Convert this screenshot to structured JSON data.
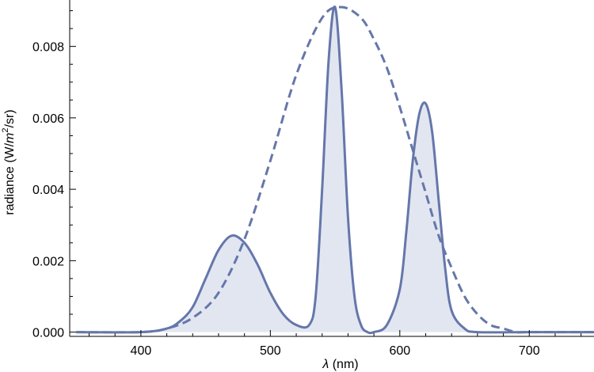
{
  "chart_data": {
    "type": "area",
    "title": "",
    "xlabel": {
      "symbol": "λ",
      "unit": " (nm)"
    },
    "ylabel": {
      "prefix": "radiance (W/",
      "m": "m",
      "exp": "2",
      "suffix": "/sr)"
    },
    "xlim": [
      345,
      750
    ],
    "ylim": [
      -0.00012,
      0.0093
    ],
    "x_ticks_major": [
      400,
      500,
      600,
      700
    ],
    "x_tick_labels": [
      "400",
      "500",
      "600",
      "700"
    ],
    "x_ticks_minor_step": 20,
    "y_ticks_major": [
      0,
      0.002,
      0.004,
      0.006,
      0.008
    ],
    "y_tick_labels": [
      "0.000",
      "0.002",
      "0.004",
      "0.006",
      "0.008"
    ],
    "y_ticks_minor_step": 0.0005,
    "grid": false,
    "series": [
      {
        "style": "solid",
        "filled": true,
        "color": "#6577aa",
        "fill_color": "#e2e6f1",
        "x": [
          350,
          400,
          420,
          430,
          440,
          450,
          460,
          470,
          480,
          490,
          500,
          510,
          520,
          530,
          535,
          540,
          545,
          550,
          555,
          560,
          565,
          570,
          575,
          580,
          590,
          600,
          605,
          610,
          615,
          620,
          625,
          630,
          635,
          640,
          650,
          660,
          700,
          750
        ],
        "y": [
          0,
          0,
          0.0001,
          0.0003,
          0.0007,
          0.0015,
          0.0023,
          0.0027,
          0.0025,
          0.0019,
          0.0011,
          0.0005,
          0.0002,
          0.0002,
          0.001,
          0.004,
          0.0076,
          0.0091,
          0.0068,
          0.0032,
          0.001,
          0.0002,
          0,
          0,
          0.0002,
          0.0012,
          0.0028,
          0.0048,
          0.0061,
          0.0064,
          0.0056,
          0.0037,
          0.0018,
          0.0006,
          0.0001,
          0,
          0,
          0
        ]
      },
      {
        "style": "dashed",
        "filled": false,
        "color": "#6577aa",
        "x": [
          350,
          400,
          420,
          440,
          460,
          480,
          500,
          520,
          540,
          555,
          570,
          580,
          590,
          600,
          610,
          620,
          630,
          640,
          650,
          660,
          670,
          680,
          690,
          700,
          750
        ],
        "y": [
          0,
          0,
          0.0001,
          0.0004,
          0.0011,
          0.0026,
          0.0048,
          0.0072,
          0.0088,
          0.0091,
          0.0088,
          0.0082,
          0.0074,
          0.0063,
          0.0051,
          0.0039,
          0.0027,
          0.0018,
          0.001,
          0.0005,
          0.0002,
          0.0001,
          0,
          0,
          0
        ]
      }
    ]
  }
}
